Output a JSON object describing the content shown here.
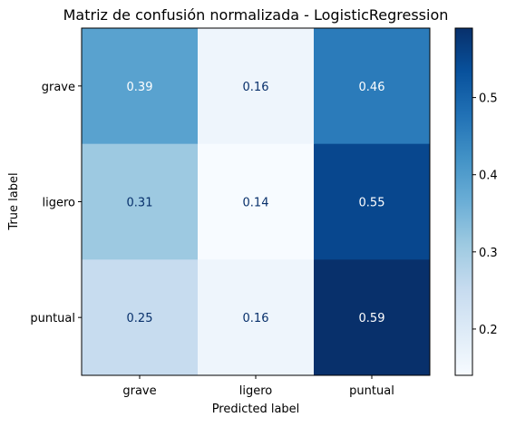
{
  "chart_data": {
    "type": "heatmap",
    "title": "Matriz de confusión normalizada - LogisticRegression",
    "xlabel": "Predicted label",
    "ylabel": "True label",
    "x_categories": [
      "grave",
      "ligero",
      "puntual"
    ],
    "y_categories": [
      "grave",
      "ligero",
      "puntual"
    ],
    "values": [
      [
        0.39,
        0.16,
        0.46
      ],
      [
        0.31,
        0.14,
        0.55
      ],
      [
        0.25,
        0.16,
        0.59
      ]
    ],
    "value_labels": [
      [
        "0.39",
        "0.16",
        "0.46"
      ],
      [
        "0.31",
        "0.14",
        "0.55"
      ],
      [
        "0.25",
        "0.16",
        "0.59"
      ]
    ],
    "colormap": "Blues",
    "colorbar": {
      "range": [
        0.14,
        0.59
      ],
      "ticks": [
        0.2,
        0.3,
        0.4,
        0.5
      ],
      "tick_labels": [
        "0.2",
        "0.3",
        "0.4",
        "0.5"
      ]
    },
    "grid": false
  }
}
